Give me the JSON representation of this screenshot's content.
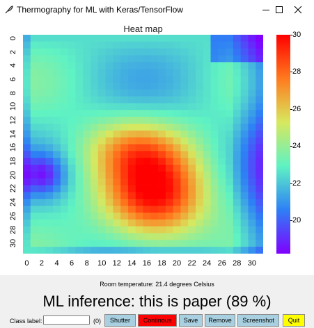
{
  "window": {
    "title": "Thermography for ML with Keras/TensorFlow",
    "icon": "feather-icon"
  },
  "heatmap": {
    "title": "Heat map",
    "x_ticks": [
      "0",
      "2",
      "4",
      "6",
      "8",
      "10",
      "12",
      "14",
      "16",
      "18",
      "20",
      "22",
      "24",
      "26",
      "28",
      "30"
    ],
    "y_ticks": [
      "0",
      "2",
      "4",
      "6",
      "8",
      "10",
      "12",
      "14",
      "16",
      "18",
      "20",
      "22",
      "24",
      "26",
      "28",
      "30"
    ],
    "colorbar_ticks": [
      "30",
      "28",
      "26",
      "24",
      "22",
      "20"
    ],
    "colormap": "rainbow",
    "value_range": [
      18.2,
      30
    ]
  },
  "status": {
    "room_temperature": "Room temperature: 21.4 degrees Celsius"
  },
  "inference": {
    "text": "ML inference: this is paper (89 %)"
  },
  "controls": {
    "class_label": "Class label:",
    "class_input_value": "",
    "count": "(0)",
    "shutter": "Shutter",
    "continuous": "Continous",
    "save": "Save",
    "remove": "Remove",
    "screenshot": "Screenshot",
    "quit": "Quit"
  },
  "colors": {
    "shutter_bg": "#a8d0e0",
    "continuous_bg": "#ff0000",
    "save_bg": "#a8d0e0",
    "remove_bg": "#a8d0e0",
    "screenshot_bg": "#a8d0e0",
    "quit_bg": "#ffff00"
  }
}
